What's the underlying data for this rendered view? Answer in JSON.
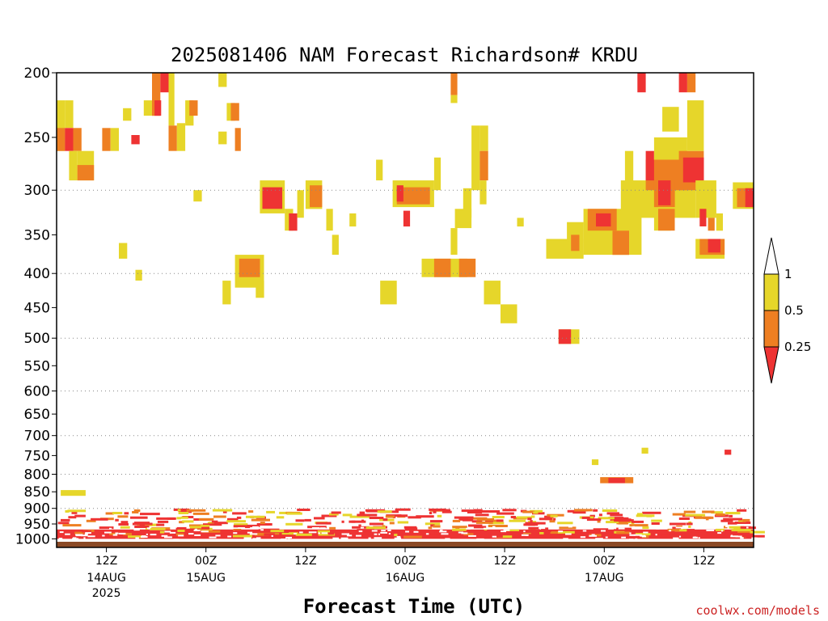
{
  "chart_data": {
    "type": "heatmap",
    "title": "2025081406 NAM Forecast Richardson# KRDU",
    "xlabel": "Forecast Time (UTC)",
    "ylabel": "",
    "credit": "coolwx.com/models",
    "xlim_hours_from_run": [
      0,
      84
    ],
    "y_scale": "log",
    "ylim": [
      1030,
      200
    ],
    "y_ticks": [
      200,
      250,
      300,
      350,
      400,
      450,
      500,
      550,
      600,
      650,
      700,
      750,
      800,
      850,
      900,
      950,
      1000
    ],
    "y_gridlines": [
      300,
      400,
      500,
      600,
      700,
      800,
      900
    ],
    "x_ticks": [
      {
        "h": 6,
        "label": "12Z",
        "date": "14AUG",
        "year": "2025"
      },
      {
        "h": 18,
        "label": "00Z",
        "date": "15AUG",
        "year": ""
      },
      {
        "h": 30,
        "label": "12Z",
        "date": "",
        "year": ""
      },
      {
        "h": 42,
        "label": "00Z",
        "date": "16AUG",
        "year": ""
      },
      {
        "h": 54,
        "label": "12Z",
        "date": "",
        "year": ""
      },
      {
        "h": 66,
        "label": "00Z",
        "date": "17AUG",
        "year": ""
      },
      {
        "h": 78,
        "label": "12Z",
        "date": "",
        "year": ""
      }
    ],
    "legend": {
      "placement": "right",
      "labels": [
        "1",
        "0.5",
        "0.25"
      ],
      "bins": [
        {
          "range": "<0.25",
          "color": "#ee3333"
        },
        {
          "range": "0.25-0.5",
          "color": "#ee7f22"
        },
        {
          "range": "0.5-1",
          "color": "#e6d62a"
        },
        {
          "range": ">1",
          "color": "#ffffff"
        }
      ]
    },
    "colors": {
      "low": "#ee3333",
      "mid": "#ee7f22",
      "high": "#e6d62a",
      "ground": "#8b4a26"
    },
    "surface_pressure": 1010,
    "cells": [
      {
        "h0": 0,
        "h1": 1,
        "p0": 220,
        "p1": 262,
        "c": "high"
      },
      {
        "h0": 1,
        "h1": 2,
        "p0": 220,
        "p1": 242,
        "c": "high"
      },
      {
        "h0": 0,
        "h1": 1,
        "p0": 242,
        "p1": 262,
        "c": "mid"
      },
      {
        "h0": 1,
        "h1": 2,
        "p0": 242,
        "p1": 262,
        "c": "low"
      },
      {
        "h0": 2,
        "h1": 3,
        "p0": 242,
        "p1": 262,
        "c": "mid"
      },
      {
        "h0": 1.5,
        "h1": 2.5,
        "p0": 262,
        "p1": 290,
        "c": "high"
      },
      {
        "h0": 2.5,
        "h1": 4.5,
        "p0": 262,
        "p1": 290,
        "c": "high"
      },
      {
        "h0": 2.5,
        "h1": 4.5,
        "p0": 275,
        "p1": 290,
        "c": "mid"
      },
      {
        "h0": 5.5,
        "h1": 6.5,
        "p0": 242,
        "p1": 262,
        "c": "mid"
      },
      {
        "h0": 6.5,
        "h1": 7.5,
        "p0": 242,
        "p1": 262,
        "c": "high"
      },
      {
        "h0": 8,
        "h1": 9,
        "p0": 226,
        "p1": 236,
        "c": "high"
      },
      {
        "h0": 9,
        "h1": 10,
        "p0": 248,
        "p1": 256,
        "c": "low"
      },
      {
        "h0": 10.5,
        "h1": 11.5,
        "p0": 220,
        "p1": 232,
        "c": "high"
      },
      {
        "h0": 11.5,
        "h1": 12.5,
        "p0": 200,
        "p1": 232,
        "c": "mid"
      },
      {
        "h0": 11.8,
        "h1": 12.6,
        "p0": 220,
        "p1": 232,
        "c": "low"
      },
      {
        "h0": 12.5,
        "h1": 13.5,
        "p0": 200,
        "p1": 214,
        "c": "low"
      },
      {
        "h0": 13.5,
        "h1": 14.2,
        "p0": 200,
        "p1": 240,
        "c": "high"
      },
      {
        "h0": 13.5,
        "h1": 14.5,
        "p0": 240,
        "p1": 262,
        "c": "mid"
      },
      {
        "h0": 14.5,
        "h1": 15.5,
        "p0": 238,
        "p1": 262,
        "c": "high"
      },
      {
        "h0": 15.5,
        "h1": 16.5,
        "p0": 220,
        "p1": 240,
        "c": "high"
      },
      {
        "h0": 16,
        "h1": 17,
        "p0": 220,
        "p1": 232,
        "c": "mid"
      },
      {
        "h0": 19.5,
        "h1": 20.5,
        "p0": 200,
        "p1": 210,
        "c": "high"
      },
      {
        "h0": 19.5,
        "h1": 20.5,
        "p0": 245,
        "p1": 256,
        "c": "high"
      },
      {
        "h0": 20.5,
        "h1": 21.5,
        "p0": 222,
        "p1": 236,
        "c": "high"
      },
      {
        "h0": 21,
        "h1": 22,
        "p0": 222,
        "p1": 236,
        "c": "mid"
      },
      {
        "h0": 21.5,
        "h1": 22.2,
        "p0": 242,
        "p1": 262,
        "c": "mid"
      },
      {
        "h0": 16.5,
        "h1": 17.5,
        "p0": 300,
        "p1": 312,
        "c": "high"
      },
      {
        "h0": 24.5,
        "h1": 27.5,
        "p0": 290,
        "p1": 325,
        "c": "high"
      },
      {
        "h0": 24.8,
        "h1": 27.2,
        "p0": 297,
        "p1": 320,
        "c": "low"
      },
      {
        "h0": 27.5,
        "h1": 28.5,
        "p0": 320,
        "p1": 345,
        "c": "high"
      },
      {
        "h0": 28,
        "h1": 29,
        "p0": 325,
        "p1": 345,
        "c": "low"
      },
      {
        "h0": 29,
        "h1": 29.8,
        "p0": 300,
        "p1": 330,
        "c": "high"
      },
      {
        "h0": 30,
        "h1": 32,
        "p0": 290,
        "p1": 320,
        "c": "high"
      },
      {
        "h0": 30.5,
        "h1": 32,
        "p0": 295,
        "p1": 318,
        "c": "mid"
      },
      {
        "h0": 32.5,
        "h1": 33.3,
        "p0": 320,
        "p1": 345,
        "c": "high"
      },
      {
        "h0": 33.2,
        "h1": 34,
        "p0": 350,
        "p1": 375,
        "c": "high"
      },
      {
        "h0": 35.3,
        "h1": 36.1,
        "p0": 325,
        "p1": 340,
        "c": "high"
      },
      {
        "h0": 38.5,
        "h1": 39.3,
        "p0": 270,
        "p1": 290,
        "c": "high"
      },
      {
        "h0": 40.5,
        "h1": 45.5,
        "p0": 290,
        "p1": 318,
        "c": "high"
      },
      {
        "h0": 41,
        "h1": 45,
        "p0": 297,
        "p1": 315,
        "c": "mid"
      },
      {
        "h0": 41,
        "h1": 41.8,
        "p0": 295,
        "p1": 312,
        "c": "low"
      },
      {
        "h0": 41.8,
        "h1": 42.6,
        "p0": 322,
        "p1": 340,
        "c": "low"
      },
      {
        "h0": 45.5,
        "h1": 46.3,
        "p0": 268,
        "p1": 300,
        "c": "high"
      },
      {
        "h0": 47.5,
        "h1": 48.3,
        "p0": 200,
        "p1": 216,
        "c": "mid"
      },
      {
        "h0": 47.5,
        "h1": 48.3,
        "p0": 216,
        "p1": 222,
        "c": "high"
      },
      {
        "h0": 50,
        "h1": 51,
        "p0": 240,
        "p1": 300,
        "c": "high"
      },
      {
        "h0": 51,
        "h1": 52,
        "p0": 240,
        "p1": 262,
        "c": "high"
      },
      {
        "h0": 51,
        "h1": 52,
        "p0": 262,
        "p1": 290,
        "c": "mid"
      },
      {
        "h0": 49,
        "h1": 50,
        "p0": 298,
        "p1": 330,
        "c": "high"
      },
      {
        "h0": 48,
        "h1": 50,
        "p0": 320,
        "p1": 342,
        "c": "high"
      },
      {
        "h0": 47.5,
        "h1": 48.3,
        "p0": 342,
        "p1": 375,
        "c": "high"
      },
      {
        "h0": 51,
        "h1": 51.8,
        "p0": 290,
        "p1": 315,
        "c": "high"
      },
      {
        "h0": 44,
        "h1": 49.5,
        "p0": 380,
        "p1": 405,
        "c": "high"
      },
      {
        "h0": 45.5,
        "h1": 47.5,
        "p0": 380,
        "p1": 405,
        "c": "mid"
      },
      {
        "h0": 48.5,
        "h1": 50.5,
        "p0": 380,
        "p1": 405,
        "c": "mid"
      },
      {
        "h0": 39,
        "h1": 41,
        "p0": 410,
        "p1": 445,
        "c": "high"
      },
      {
        "h0": 51.5,
        "h1": 53.5,
        "p0": 410,
        "p1": 445,
        "c": "high"
      },
      {
        "h0": 53.5,
        "h1": 55.5,
        "p0": 445,
        "p1": 475,
        "c": "high"
      },
      {
        "h0": 55.5,
        "h1": 56.3,
        "p0": 330,
        "p1": 340,
        "c": "high"
      },
      {
        "h0": 21.5,
        "h1": 25,
        "p0": 375,
        "p1": 420,
        "c": "high"
      },
      {
        "h0": 22,
        "h1": 24.5,
        "p0": 380,
        "p1": 405,
        "c": "mid"
      },
      {
        "h0": 20,
        "h1": 21,
        "p0": 410,
        "p1": 445,
        "c": "high"
      },
      {
        "h0": 24,
        "h1": 25,
        "p0": 410,
        "p1": 435,
        "c": "high"
      },
      {
        "h0": 7.5,
        "h1": 8.5,
        "p0": 360,
        "p1": 380,
        "c": "high"
      },
      {
        "h0": 9.5,
        "h1": 10.3,
        "p0": 395,
        "p1": 410,
        "c": "high"
      },
      {
        "h0": 59,
        "h1": 63.5,
        "p0": 355,
        "p1": 380,
        "c": "high"
      },
      {
        "h0": 60.5,
        "h1": 63,
        "p0": 485,
        "p1": 510,
        "c": "high"
      },
      {
        "h0": 60.5,
        "h1": 62,
        "p0": 485,
        "p1": 510,
        "c": "low"
      },
      {
        "h0": 61.5,
        "h1": 63.5,
        "p0": 335,
        "p1": 360,
        "c": "high"
      },
      {
        "h0": 62,
        "h1": 63,
        "p0": 350,
        "p1": 370,
        "c": "mid"
      },
      {
        "h0": 63.5,
        "h1": 70.5,
        "p0": 320,
        "p1": 375,
        "c": "high"
      },
      {
        "h0": 64,
        "h1": 67.5,
        "p0": 320,
        "p1": 345,
        "c": "mid"
      },
      {
        "h0": 65,
        "h1": 66.8,
        "p0": 325,
        "p1": 340,
        "c": "low"
      },
      {
        "h0": 67,
        "h1": 69,
        "p0": 345,
        "p1": 375,
        "c": "mid"
      },
      {
        "h0": 68,
        "h1": 77,
        "p0": 290,
        "p1": 330,
        "c": "high"
      },
      {
        "h0": 71,
        "h1": 76,
        "p0": 270,
        "p1": 300,
        "c": "mid"
      },
      {
        "h0": 72,
        "h1": 74.5,
        "p0": 290,
        "p1": 318,
        "c": "mid"
      },
      {
        "h0": 72.5,
        "h1": 74,
        "p0": 290,
        "p1": 316,
        "c": "low"
      },
      {
        "h0": 71,
        "h1": 72,
        "p0": 262,
        "p1": 290,
        "c": "low"
      },
      {
        "h0": 72,
        "h1": 76,
        "p0": 250,
        "p1": 270,
        "c": "high"
      },
      {
        "h0": 73,
        "h1": 75,
        "p0": 225,
        "p1": 245,
        "c": "high"
      },
      {
        "h0": 75,
        "h1": 78,
        "p0": 262,
        "p1": 300,
        "c": "mid"
      },
      {
        "h0": 75.5,
        "h1": 78,
        "p0": 268,
        "p1": 292,
        "c": "low"
      },
      {
        "h0": 77,
        "h1": 79.5,
        "p0": 290,
        "p1": 330,
        "c": "high"
      },
      {
        "h0": 76,
        "h1": 78,
        "p0": 220,
        "p1": 262,
        "c": "high"
      },
      {
        "h0": 72,
        "h1": 74,
        "p0": 320,
        "p1": 345,
        "c": "high"
      },
      {
        "h0": 72.5,
        "h1": 74.5,
        "p0": 320,
        "p1": 345,
        "c": "mid"
      },
      {
        "h0": 77.5,
        "h1": 78.3,
        "p0": 320,
        "p1": 340,
        "c": "low"
      },
      {
        "h0": 77,
        "h1": 80.5,
        "p0": 355,
        "p1": 380,
        "c": "high"
      },
      {
        "h0": 77.5,
        "h1": 80.5,
        "p0": 355,
        "p1": 375,
        "c": "mid"
      },
      {
        "h0": 78.5,
        "h1": 80,
        "p0": 355,
        "p1": 372,
        "c": "low"
      },
      {
        "h0": 78.5,
        "h1": 79.3,
        "p0": 330,
        "p1": 345,
        "c": "mid"
      },
      {
        "h0": 79.5,
        "h1": 80.3,
        "p0": 325,
        "p1": 345,
        "c": "high"
      },
      {
        "h0": 70,
        "h1": 71,
        "p0": 200,
        "p1": 214,
        "c": "low"
      },
      {
        "h0": 75,
        "h1": 76,
        "p0": 200,
        "p1": 214,
        "c": "low"
      },
      {
        "h0": 76,
        "h1": 77,
        "p0": 200,
        "p1": 214,
        "c": "mid"
      },
      {
        "h0": 68.5,
        "h1": 69.5,
        "p0": 262,
        "p1": 292,
        "c": "high"
      },
      {
        "h0": 81.5,
        "h1": 84,
        "p0": 292,
        "p1": 320,
        "c": "high"
      },
      {
        "h0": 82,
        "h1": 84,
        "p0": 298,
        "p1": 318,
        "c": "mid"
      },
      {
        "h0": 83,
        "h1": 84,
        "p0": 298,
        "p1": 318,
        "c": "low"
      },
      {
        "h0": 65.5,
        "h1": 69.5,
        "p0": 808,
        "p1": 825,
        "c": "mid"
      },
      {
        "h0": 66.5,
        "h1": 68.5,
        "p0": 810,
        "p1": 825,
        "c": "low"
      },
      {
        "h0": 64.5,
        "h1": 65.3,
        "p0": 760,
        "p1": 775,
        "c": "high"
      },
      {
        "h0": 70.5,
        "h1": 71.3,
        "p0": 730,
        "p1": 745,
        "c": "high"
      },
      {
        "h0": 80.5,
        "h1": 81.3,
        "p0": 735,
        "p1": 748,
        "c": "low"
      },
      {
        "h0": 0.5,
        "h1": 3.5,
        "p0": 845,
        "p1": 862,
        "c": "high"
      },
      {
        "h0": 0,
        "h1": 84,
        "p0": 968,
        "p1": 1000,
        "c": "low"
      }
    ]
  }
}
